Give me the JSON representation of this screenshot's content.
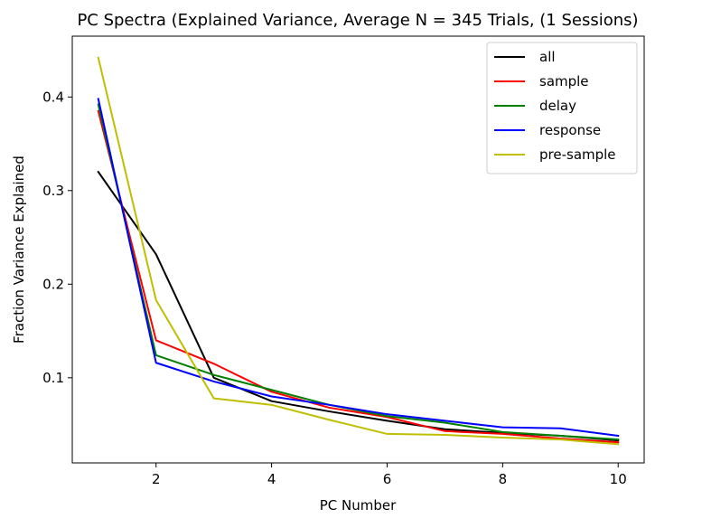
{
  "chart_data": {
    "type": "line",
    "title": "PC Spectra (Explained Variance, Average N = 345 Trials, (1 Sessions)",
    "xlabel": "PC Number",
    "ylabel": "Fraction Variance Explained",
    "xlim": [
      0.55,
      10.45
    ],
    "ylim": [
      0.009,
      0.465
    ],
    "xticks": [
      2,
      4,
      6,
      8,
      10
    ],
    "yticks": [
      0.1,
      0.2,
      0.3,
      0.4
    ],
    "xtick_labels": [
      "2",
      "4",
      "6",
      "8",
      "10"
    ],
    "ytick_labels": [
      "0.1",
      "0.2",
      "0.3",
      "0.4"
    ],
    "grid": false,
    "legend_position": "upper right",
    "x": [
      1,
      2,
      3,
      4,
      5,
      6,
      7,
      8,
      9,
      10
    ],
    "series": [
      {
        "name": "all",
        "color": "#000000",
        "values": [
          0.32,
          0.232,
          0.1,
          0.075,
          0.064,
          0.054,
          0.045,
          0.041,
          0.038,
          0.033
        ]
      },
      {
        "name": "sample",
        "color": "#ff0000",
        "values": [
          0.385,
          0.14,
          0.115,
          0.085,
          0.068,
          0.058,
          0.043,
          0.04,
          0.035,
          0.031
        ]
      },
      {
        "name": "delay",
        "color": "#008000",
        "values": [
          0.392,
          0.124,
          0.103,
          0.087,
          0.071,
          0.059,
          0.052,
          0.042,
          0.038,
          0.034
        ]
      },
      {
        "name": "response",
        "color": "#0000ff",
        "values": [
          0.398,
          0.116,
          0.096,
          0.08,
          0.071,
          0.061,
          0.054,
          0.047,
          0.046,
          0.038
        ]
      },
      {
        "name": "pre-sample",
        "color": "#bfbf00",
        "values": [
          0.442,
          0.183,
          0.078,
          0.071,
          0.055,
          0.04,
          0.039,
          0.036,
          0.034,
          0.029
        ]
      }
    ]
  }
}
